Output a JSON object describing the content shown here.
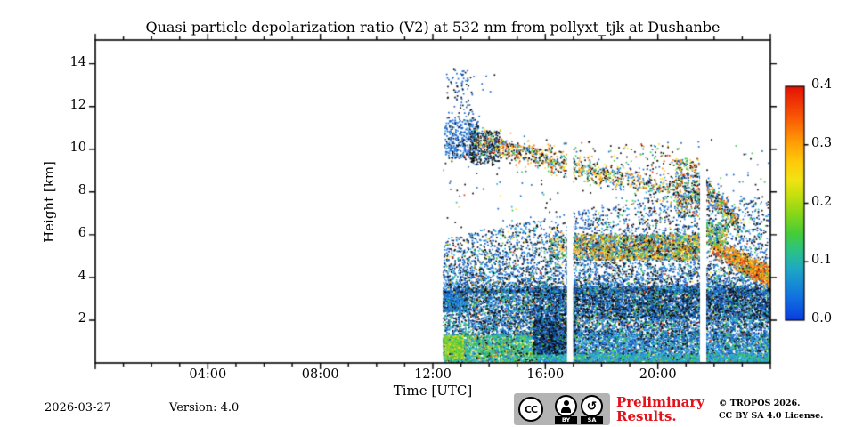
{
  "title": "Quasi particle depolarization ratio (V2) at 532 nm from pollyxt_tjk at Dushanbe",
  "footer": {
    "date": "2026-03-27",
    "version": "Version: 4.0",
    "preliminary": "Preliminary Results.",
    "copyright_line1": "© TROPOS 2026.",
    "copyright_line2": "CC BY SA 4.0 License.",
    "cc_badge": {
      "cc": "CC",
      "by": "BY",
      "sa": "SA",
      "sa_arrow": "↺"
    },
    "preliminary_color": "#e3111a"
  },
  "chart_data": {
    "type": "scatter",
    "title": "Quasi particle depolarization ratio (V2) at 532 nm from pollyxt_tjk at Dushanbe",
    "xlabel": "Time [UTC]",
    "ylabel": "Height [km]",
    "x_range_hours": [
      0,
      24
    ],
    "y_range_km": [
      0,
      15.11
    ],
    "grid": false,
    "xticks": [
      {
        "label": "04:00",
        "hour": 4
      },
      {
        "label": "08:00",
        "hour": 8
      },
      {
        "label": "12:00",
        "hour": 12
      },
      {
        "label": "16:00",
        "hour": 16
      },
      {
        "label": "20:00",
        "hour": 20
      }
    ],
    "xtick_minor_every_hours": 1,
    "yticks": [
      {
        "label": "2",
        "km": 2
      },
      {
        "label": "4",
        "km": 4
      },
      {
        "label": "6",
        "km": 6
      },
      {
        "label": "8",
        "km": 8
      },
      {
        "label": "10",
        "km": 10
      },
      {
        "label": "12",
        "km": 12
      },
      {
        "label": "14",
        "km": 14
      }
    ],
    "colorbar": {
      "min": 0.0,
      "max": 0.4,
      "ticks": [
        {
          "label": "0.0",
          "value": 0.0
        },
        {
          "label": "0.1",
          "value": 0.1
        },
        {
          "label": "0.2",
          "value": 0.2
        },
        {
          "label": "0.3",
          "value": 0.3
        },
        {
          "label": "0.4",
          "value": 0.4
        }
      ],
      "gradient_stops": [
        {
          "pos": 0.0,
          "color": "#0a3ce0"
        },
        {
          "pos": 0.1,
          "color": "#1173e0"
        },
        {
          "pos": 0.22,
          "color": "#1ea8c4"
        },
        {
          "pos": 0.3,
          "color": "#2cc383"
        },
        {
          "pos": 0.37,
          "color": "#45cc38"
        },
        {
          "pos": 0.45,
          "color": "#85d619"
        },
        {
          "pos": 0.53,
          "color": "#c3df0e"
        },
        {
          "pos": 0.6,
          "color": "#f2e313"
        },
        {
          "pos": 0.68,
          "color": "#ffc90a"
        },
        {
          "pos": 0.76,
          "color": "#ff9d06"
        },
        {
          "pos": 0.86,
          "color": "#fb5c04"
        },
        {
          "pos": 1.0,
          "color": "#e51104"
        }
      ]
    },
    "measurement_start_hour": 12.35,
    "data_gap_hours": [
      [
        16.77,
        16.99
      ],
      [
        21.5,
        21.72
      ]
    ],
    "palette": {
      "blue": "#1c64cc",
      "blue2": "#2f8ee2",
      "navy": "#0d3a8f",
      "black": "#0d0d0d",
      "cyan": "#27b3dc",
      "teal": "#2dbf93",
      "green": "#3bc84b",
      "lime": "#8ad32b",
      "yellow": "#ffd826",
      "gold": "#ffbb0d",
      "orange": "#ff8d0e",
      "red": "#e5330f"
    },
    "regions": [
      {
        "name": "surface-green-band",
        "type": "uniform",
        "t": [
          12.35,
          15.7
        ],
        "h": [
          0.02,
          1.35
        ],
        "n": 2600,
        "colors": {
          "teal": 0.2,
          "green": 0.22,
          "cyan": 0.18,
          "lime": 0.12,
          "blue2": 0.08,
          "yellow": 0.05,
          "black": 0.06,
          "blue": 0.05,
          "gold": 0.02,
          "red": 0.02
        }
      },
      {
        "name": "surface-bright-patch",
        "type": "uniform",
        "t": [
          12.4,
          13.05
        ],
        "h": [
          0.25,
          1.3
        ],
        "n": 450,
        "colors": {
          "lime": 0.45,
          "yellow": 0.2,
          "green": 0.35
        }
      },
      {
        "name": "surface-blue-band",
        "type": "uniform",
        "t": [
          15.7,
          24.0
        ],
        "h": [
          0.02,
          1.4
        ],
        "n": 5200,
        "colors": {
          "blue": 0.3,
          "blue2": 0.22,
          "cyan": 0.14,
          "black": 0.12,
          "green": 0.09,
          "teal": 0.05,
          "navy": 0.04,
          "lime": 0.02,
          "yellow": 0.01,
          "red": 0.01
        }
      },
      {
        "name": "surface-thin-bright",
        "type": "uniform",
        "t": [
          15.7,
          24.0
        ],
        "h": [
          0.0,
          0.45
        ],
        "n": 1200,
        "colors": {
          "cyan": 0.35,
          "teal": 0.25,
          "blue2": 0.2,
          "green": 0.15,
          "lime": 0.05
        }
      },
      {
        "name": "low-dense-mix",
        "type": "uniform",
        "t": [
          13.2,
          24.0
        ],
        "h": [
          1.35,
          3.35
        ],
        "n": 7000,
        "colors": {
          "blue": 0.28,
          "blue2": 0.16,
          "black": 0.22,
          "navy": 0.08,
          "cyan": 0.1,
          "green": 0.07,
          "teal": 0.03,
          "yellow": 0.025,
          "lime": 0.015,
          "orange": 0.01,
          "red": 0.01
        }
      },
      {
        "name": "early-blue-block",
        "type": "uniform",
        "t": [
          12.35,
          13.2
        ],
        "h": [
          2.45,
          3.35
        ],
        "n": 650,
        "colors": {
          "blue": 0.4,
          "blue2": 0.2,
          "black": 0.15,
          "cyan": 0.15,
          "green": 0.1
        }
      },
      {
        "name": "early-sparse-low",
        "type": "uniform",
        "t": [
          12.35,
          13.2
        ],
        "h": [
          1.35,
          2.45
        ],
        "n": 200,
        "colors": {
          "blue": 0.4,
          "cyan": 0.2,
          "black": 0.2,
          "green": 0.2
        }
      },
      {
        "name": "dark-patch-16h",
        "type": "uniform",
        "t": [
          15.55,
          17.05
        ],
        "h": [
          0.45,
          2.1
        ],
        "n": 1200,
        "colors": {
          "black": 0.45,
          "navy": 0.18,
          "blue": 0.27,
          "cyan": 0.05,
          "green": 0.05
        }
      },
      {
        "name": "dark-band-2-3km",
        "type": "uniform",
        "t": [
          15.5,
          24.0
        ],
        "h": [
          2.1,
          3.6
        ],
        "n": 2400,
        "colors": {
          "black": 0.42,
          "blue": 0.3,
          "navy": 0.12,
          "blue2": 0.08,
          "green": 0.04,
          "cyan": 0.04
        }
      },
      {
        "name": "dense-top-fade",
        "type": "fade",
        "t": [
          12.35,
          24.0
        ],
        "base": 3.35,
        "top_pts": [
          [
            12.35,
            4.35
          ],
          [
            14,
            4.85
          ],
          [
            16,
            5.25
          ],
          [
            18,
            5.95
          ],
          [
            19.5,
            6.3
          ],
          [
            24,
            6.35
          ]
        ],
        "ext": 1.5,
        "power": 2.3,
        "n": 6500,
        "colors": {
          "blue": 0.34,
          "blue2": 0.18,
          "black": 0.28,
          "cyan": 0.08,
          "green": 0.05,
          "navy": 0.04,
          "yellow": 0.02,
          "orange": 0.005,
          "red": 0.005
        }
      },
      {
        "name": "pollution-plume-5km",
        "type": "uniform",
        "t": [
          17.0,
          21.55
        ],
        "h": [
          4.85,
          6.05
        ],
        "n": 2100,
        "colors": {
          "yellow": 0.2,
          "gold": 0.1,
          "orange": 0.1,
          "blue": 0.16,
          "blue2": 0.08,
          "black": 0.14,
          "green": 0.12,
          "cyan": 0.06,
          "red": 0.04
        }
      },
      {
        "name": "plume-lead-in",
        "type": "uniform",
        "t": [
          16.1,
          17.0
        ],
        "h": [
          4.95,
          5.95
        ],
        "n": 130,
        "colors": {
          "yellow": 0.18,
          "orange": 0.1,
          "blue": 0.2,
          "black": 0.2,
          "green": 0.16,
          "cyan": 0.16
        }
      },
      {
        "name": "dust-descent-orange",
        "type": "band",
        "p0": [
          21.75,
          5.6
        ],
        "p1": [
          24.05,
          3.95
        ],
        "th": 0.85,
        "n": 1050,
        "bias": "end",
        "colors": {
          "orange": 0.34,
          "red": 0.18,
          "gold": 0.18,
          "yellow": 0.1,
          "green": 0.08,
          "black": 0.06,
          "blue": 0.06
        }
      },
      {
        "name": "green-above-descent",
        "type": "uniform",
        "t": [
          21.7,
          22.45
        ],
        "h": [
          5.6,
          6.6
        ],
        "n": 240,
        "colors": {
          "green": 0.3,
          "yellow": 0.2,
          "blue": 0.15,
          "black": 0.15,
          "cyan": 0.1,
          "orange": 0.1
        }
      },
      {
        "name": "cirrus-blue-cluster",
        "type": "uniform",
        "t": [
          12.4,
          13.6
        ],
        "h": [
          9.6,
          11.4
        ],
        "n": 380,
        "colors": {
          "blue": 0.55,
          "blue2": 0.2,
          "black": 0.2,
          "cyan": 0.05
        }
      },
      {
        "name": "cirrus-black-cluster",
        "type": "uniform",
        "t": [
          13.3,
          14.35
        ],
        "h": [
          9.3,
          10.9
        ],
        "n": 260,
        "colors": {
          "black": 0.62,
          "blue": 0.2,
          "navy": 0.1,
          "green": 0.04,
          "cyan": 0.04
        }
      },
      {
        "name": "high-sparse-blue",
        "type": "uniform",
        "t": [
          12.45,
          13.45
        ],
        "h": [
          11.4,
          13.85
        ],
        "n": 80,
        "colors": {
          "blue": 0.6,
          "black": 0.3,
          "cyan": 0.1
        }
      },
      {
        "name": "descending-aerosol-trail-a",
        "type": "band",
        "p0": [
          13.4,
          10.55
        ],
        "p1": [
          18.3,
          8.75
        ],
        "th": 1.05,
        "n": 780,
        "colors": {
          "black": 0.28,
          "yellow": 0.13,
          "orange": 0.13,
          "gold": 0.06,
          "green": 0.1,
          "blue": 0.1,
          "red": 0.09,
          "cyan": 0.11
        }
      },
      {
        "name": "descending-aerosol-trail-b",
        "type": "band",
        "p0": [
          18.3,
          8.8
        ],
        "p1": [
          21.6,
          7.7
        ],
        "th": 0.95,
        "n": 320,
        "colors": {
          "black": 0.3,
          "blue": 0.15,
          "yellow": 0.12,
          "orange": 0.12,
          "green": 0.1,
          "red": 0.08,
          "cyan": 0.13
        }
      },
      {
        "name": "cluster-21h",
        "type": "uniform",
        "t": [
          20.6,
          21.55
        ],
        "h": [
          6.9,
          9.6
        ],
        "n": 360,
        "colors": {
          "black": 0.25,
          "blue": 0.15,
          "green": 0.15,
          "yellow": 0.13,
          "orange": 0.12,
          "red": 0.1,
          "cyan": 0.1
        }
      },
      {
        "name": "descent-after-gap",
        "type": "band",
        "p0": [
          21.65,
          8.3
        ],
        "p1": [
          22.85,
          6.4
        ],
        "th": 0.95,
        "n": 300,
        "colors": {
          "black": 0.25,
          "blue": 0.18,
          "green": 0.15,
          "yellow": 0.12,
          "orange": 0.12,
          "cyan": 0.1,
          "red": 0.08
        }
      },
      {
        "name": "salt-noise",
        "type": "uniform",
        "t": [
          12.35,
          24.0
        ],
        "h": [
          0.0,
          10.6
        ],
        "n": 600,
        "colors": {
          "blue": 0.35,
          "black": 0.35,
          "green": 0.1,
          "cyan": 0.08,
          "yellow": 0.06,
          "red": 0.06
        }
      },
      {
        "name": "high-salt",
        "type": "uniform",
        "t": [
          12.4,
          14.2
        ],
        "h": [
          10.6,
          13.6
        ],
        "n": 25,
        "colors": {
          "blue": 0.5,
          "black": 0.5
        }
      },
      {
        "name": "mid-high-sparse",
        "type": "uniform",
        "t": [
          18.2,
          20.8
        ],
        "h": [
          8.1,
          10.3
        ],
        "n": 120,
        "colors": {
          "black": 0.3,
          "blue": 0.2,
          "green": 0.12,
          "yellow": 0.12,
          "orange": 0.1,
          "red": 0.08,
          "cyan": 0.08
        }
      }
    ]
  }
}
